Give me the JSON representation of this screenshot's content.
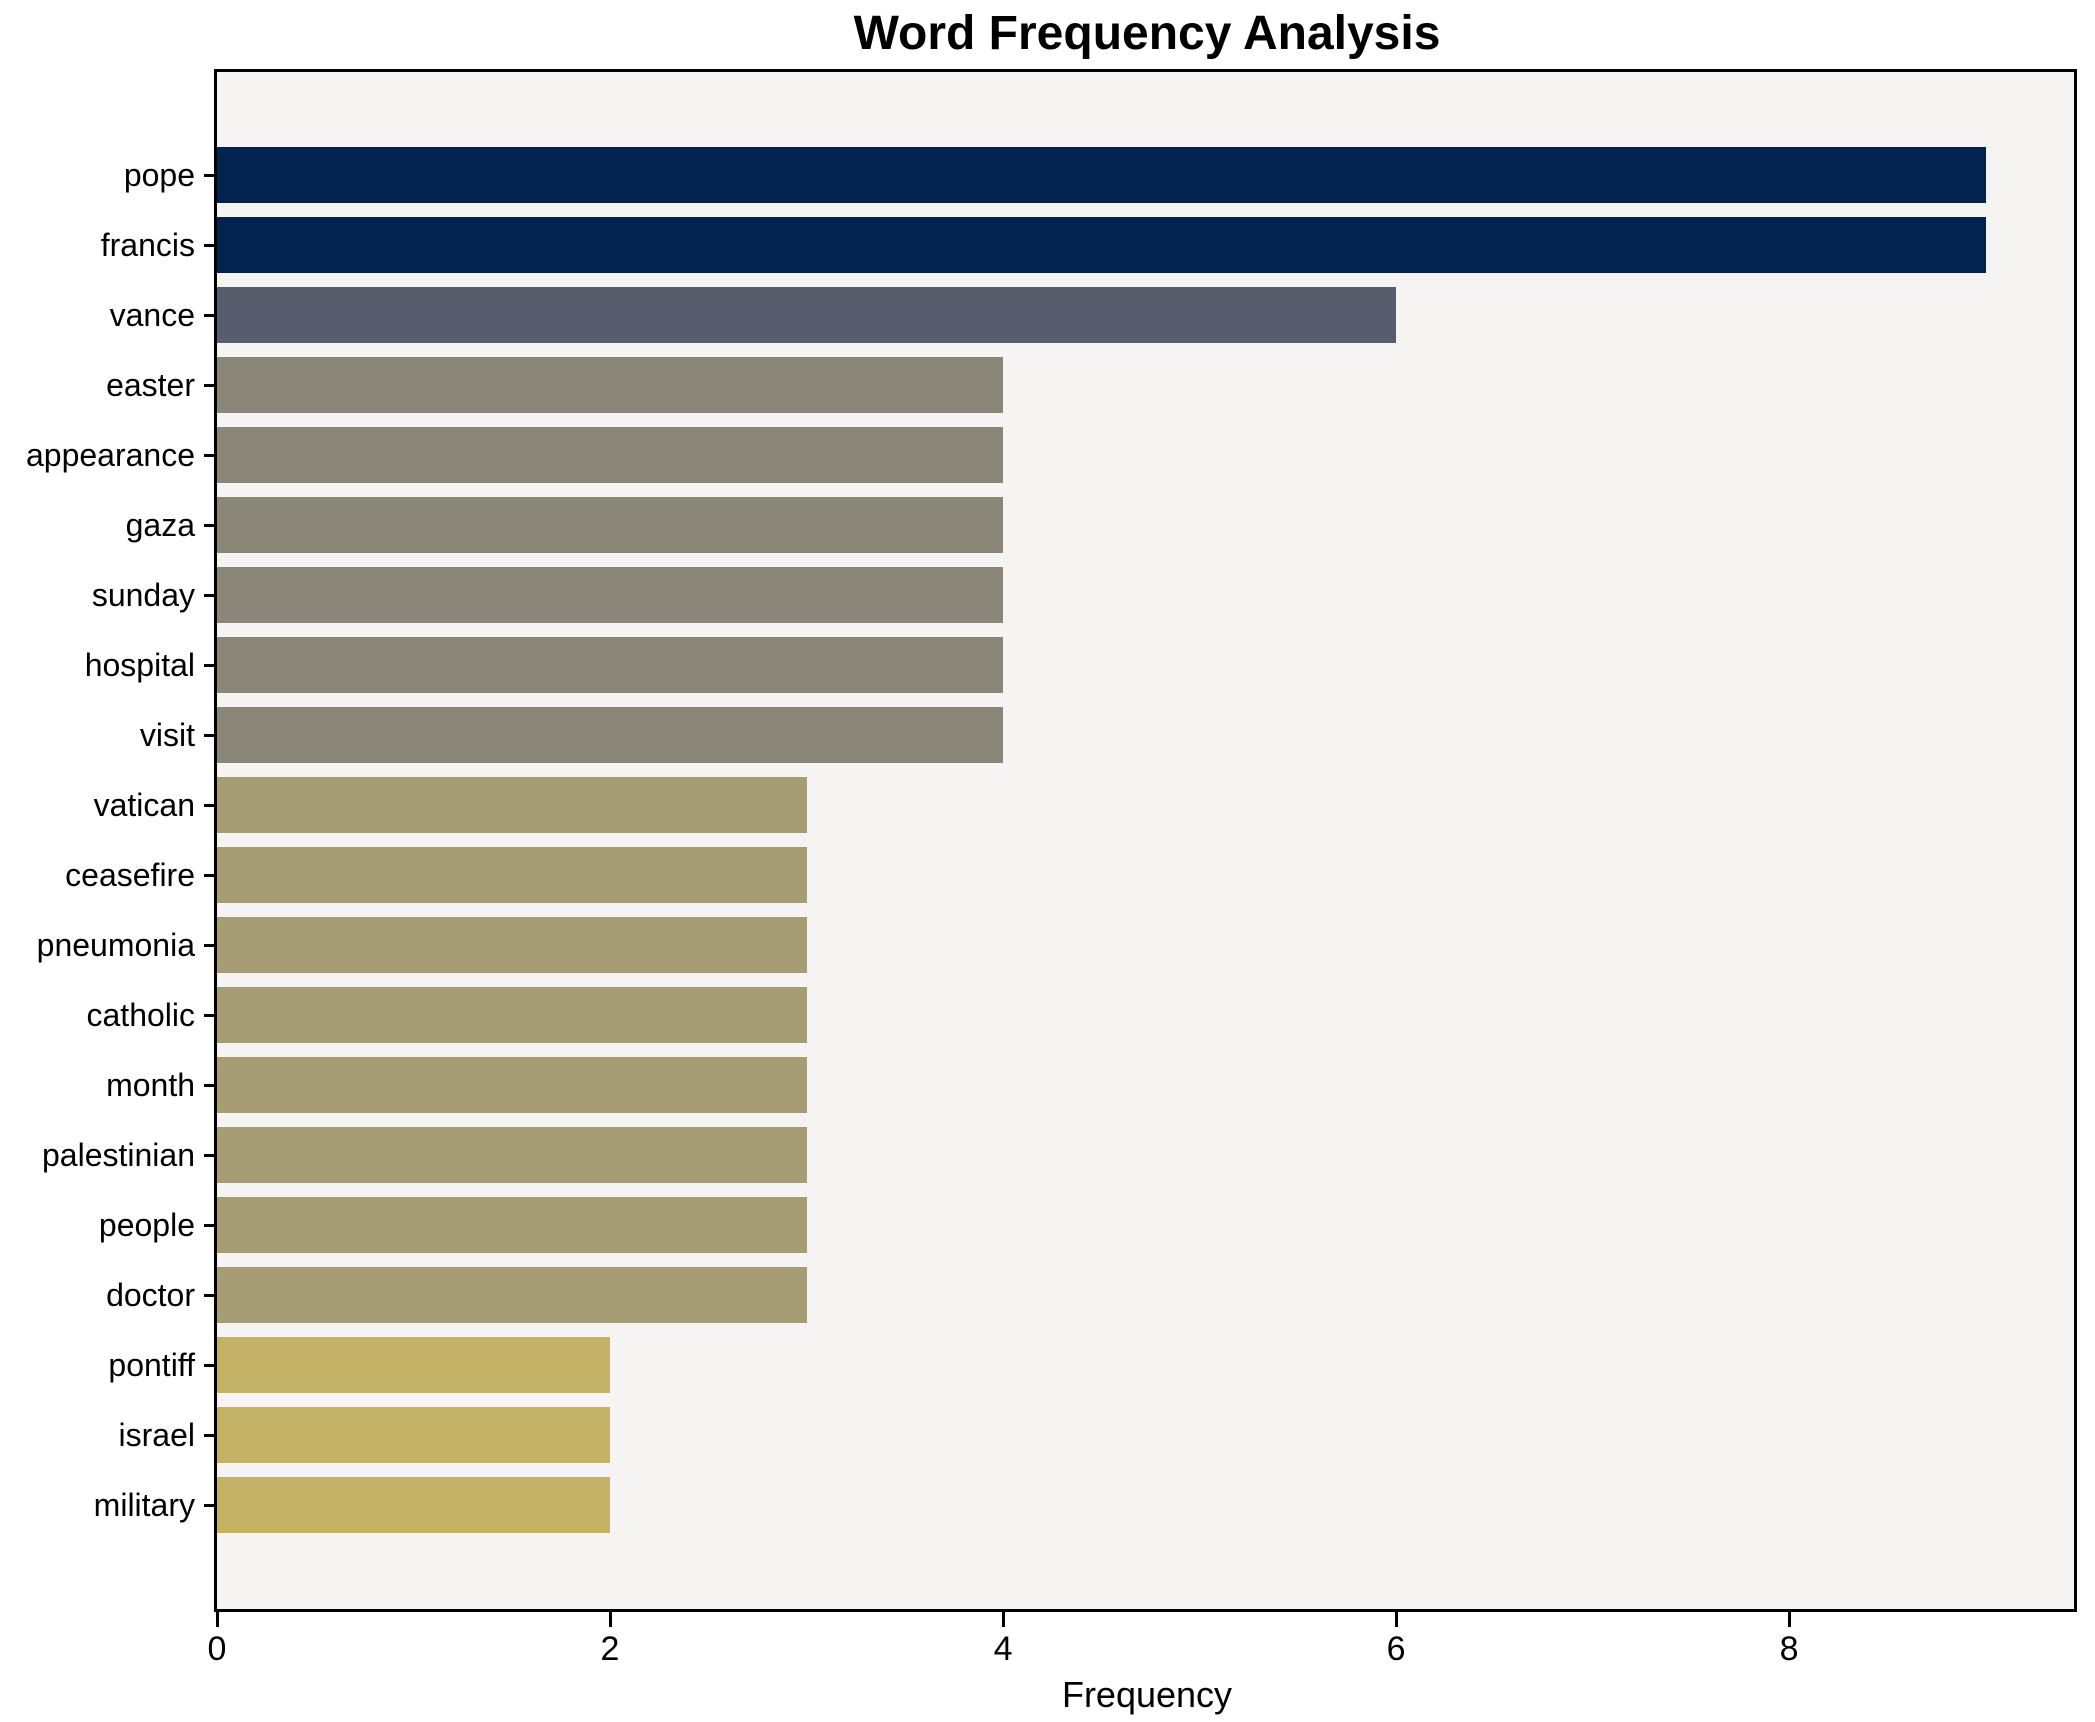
{
  "chart_data": {
    "type": "bar",
    "orientation": "horizontal",
    "title": "Word Frequency Analysis",
    "xlabel": "Frequency",
    "ylabel": "",
    "categories": [
      "pope",
      "francis",
      "vance",
      "easter",
      "appearance",
      "gaza",
      "sunday",
      "hospital",
      "visit",
      "vatican",
      "ceasefire",
      "pneumonia",
      "catholic",
      "month",
      "palestinian",
      "people",
      "doctor",
      "pontiff",
      "israel",
      "military"
    ],
    "values": [
      9,
      9,
      6,
      4,
      4,
      4,
      4,
      4,
      4,
      3,
      3,
      3,
      3,
      3,
      3,
      3,
      3,
      2,
      2,
      2
    ],
    "bar_colors": [
      "#022350",
      "#022350",
      "#575d6d",
      "#8a8779",
      "#8a8779",
      "#8a8779",
      "#8a8779",
      "#8a8779",
      "#8a8779",
      "#a69d75",
      "#a69d75",
      "#a69d75",
      "#a69d75",
      "#a69d75",
      "#a69d75",
      "#a69d75",
      "#a69d75",
      "#c3b266",
      "#c3b266",
      "#c3b266"
    ],
    "xlim": [
      0,
      9.45
    ],
    "xticks": [
      0,
      2,
      4,
      6,
      8
    ],
    "grid": false,
    "legend": "none",
    "plot_background": "#f5f4f2",
    "frame_color": "#000000",
    "text_color": "#000000"
  }
}
